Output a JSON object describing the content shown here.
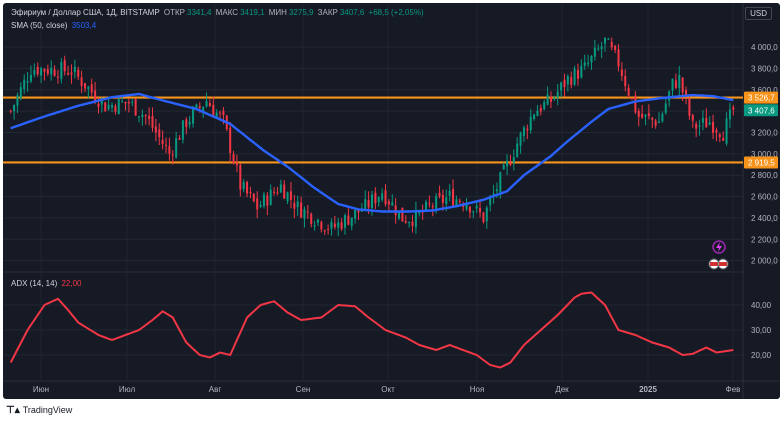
{
  "header": {
    "symbol": "Эфириум / Доллар США, 1Д, BITSTAMP",
    "open_label": "ОТКР",
    "open": "3341,4",
    "high_label": "МАКС",
    "high": "3419,1",
    "low_label": "МИН",
    "low": "3275,9",
    "close_label": "ЗАКР",
    "close": "3407,6",
    "change": "+68,5 (+2,05%)",
    "sma_label": "SMA (50, close)",
    "sma_value": "3503,4",
    "adx_label": "ADX (14, 14)",
    "adx_value": "22,00",
    "currency": "USD"
  },
  "footer": {
    "brand": "TradingView"
  },
  "colors": {
    "background": "#161a25",
    "up": "#089981",
    "down": "#f23645",
    "sma": "#2962ff",
    "adx": "#f23645",
    "level": "#f7931a"
  },
  "chart_data": [
    {
      "type": "candlestick",
      "title": "Эфириум / Доллар США, 1Д, BITSTAMP",
      "ylim": [
        1950,
        4150
      ],
      "y_ticks": [
        2000,
        2200,
        2400,
        2600,
        2800,
        3000,
        3200,
        3400,
        3600,
        3800,
        4000
      ],
      "y_tick_labels": [
        "2 000,0",
        "2 200,0",
        "2 400,0",
        "2 600,0",
        "2 800,0",
        "3 000,0",
        "3 200,0",
        "3 400,0",
        "3 600,0",
        "3 800,0",
        "4 000,0"
      ],
      "x_labels": [
        "Июн",
        "Июл",
        "Авг",
        "Сен",
        "Окт",
        "Ноя",
        "Дек",
        "2025",
        "Фев"
      ],
      "horizontal_levels": [
        {
          "value": 3526.7,
          "label": "3 526,7"
        },
        {
          "value": 2919.5,
          "label": "2 919,5"
        }
      ],
      "last_price_label": "3 407,6",
      "close_path": [
        [
          0,
          3400
        ],
        [
          6,
          3800
        ],
        [
          18,
          3780
        ],
        [
          28,
          3450
        ],
        [
          35,
          3480
        ],
        [
          40,
          3350
        ],
        [
          45,
          3100
        ],
        [
          47,
          3000
        ],
        [
          52,
          3300
        ],
        [
          58,
          3500
        ],
        [
          63,
          3300
        ],
        [
          66,
          2950
        ],
        [
          68,
          2700
        ],
        [
          73,
          2500
        ],
        [
          80,
          2700
        ],
        [
          85,
          2500
        ],
        [
          95,
          2300
        ],
        [
          105,
          2500
        ],
        [
          110,
          2650
        ],
        [
          116,
          2400
        ],
        [
          120,
          2400
        ],
        [
          124,
          2500
        ],
        [
          130,
          2600
        ],
        [
          135,
          2550
        ],
        [
          140,
          2400
        ],
        [
          142,
          2550
        ],
        [
          145,
          2750
        ],
        [
          150,
          3100
        ],
        [
          155,
          3400
        ],
        [
          160,
          3500
        ],
        [
          165,
          3700
        ],
        [
          170,
          3800
        ],
        [
          176,
          4050
        ],
        [
          180,
          3850
        ],
        [
          184,
          3500
        ],
        [
          186,
          3350
        ],
        [
          192,
          3300
        ],
        [
          196,
          3650
        ],
        [
          198,
          3700
        ],
        [
          202,
          3250
        ],
        [
          207,
          3300
        ],
        [
          211,
          3200
        ],
        [
          214,
          3407.6
        ]
      ],
      "sma_path": [
        [
          0,
          3240
        ],
        [
          10,
          3350
        ],
        [
          20,
          3450
        ],
        [
          30,
          3530
        ],
        [
          38,
          3560
        ],
        [
          45,
          3500
        ],
        [
          55,
          3420
        ],
        [
          65,
          3280
        ],
        [
          75,
          3030
        ],
        [
          82,
          2880
        ],
        [
          90,
          2680
        ],
        [
          97,
          2530
        ],
        [
          103,
          2480
        ],
        [
          110,
          2460
        ],
        [
          118,
          2460
        ],
        [
          125,
          2470
        ],
        [
          132,
          2510
        ],
        [
          140,
          2570
        ],
        [
          147,
          2650
        ],
        [
          152,
          2800
        ],
        [
          160,
          2980
        ],
        [
          165,
          3120
        ],
        [
          172,
          3300
        ],
        [
          177,
          3420
        ],
        [
          185,
          3490
        ],
        [
          192,
          3520
        ],
        [
          202,
          3550
        ],
        [
          208,
          3540
        ],
        [
          214,
          3503.4
        ]
      ]
    },
    {
      "type": "line",
      "title": "ADX (14, 14)",
      "ylim": [
        12,
        48
      ],
      "y_ticks": [
        20,
        30,
        40
      ],
      "y_tick_labels": [
        "20,00",
        "30,00",
        "40,00"
      ],
      "adx_path": [
        [
          0,
          17
        ],
        [
          5,
          30
        ],
        [
          10,
          40
        ],
        [
          14,
          42.5
        ],
        [
          17,
          38
        ],
        [
          20,
          33
        ],
        [
          26,
          28
        ],
        [
          30,
          26
        ],
        [
          34,
          28
        ],
        [
          38,
          30
        ],
        [
          42,
          34
        ],
        [
          45,
          37.5
        ],
        [
          48,
          35
        ],
        [
          52,
          25
        ],
        [
          56,
          20
        ],
        [
          59,
          19
        ],
        [
          62,
          21
        ],
        [
          65,
          20
        ],
        [
          70,
          35
        ],
        [
          74,
          40
        ],
        [
          78,
          41.5
        ],
        [
          82,
          37
        ],
        [
          86,
          34
        ],
        [
          92,
          35
        ],
        [
          97,
          40
        ],
        [
          102,
          39.5
        ],
        [
          106,
          35
        ],
        [
          111,
          30
        ],
        [
          117,
          27
        ],
        [
          121,
          24
        ],
        [
          126,
          22
        ],
        [
          130,
          24
        ],
        [
          134,
          22
        ],
        [
          138,
          20
        ],
        [
          142,
          16
        ],
        [
          145,
          15
        ],
        [
          148,
          17
        ],
        [
          152,
          24
        ],
        [
          157,
          30
        ],
        [
          162,
          36
        ],
        [
          167,
          43
        ],
        [
          169,
          44.5
        ],
        [
          172,
          45
        ],
        [
          176,
          40
        ],
        [
          180,
          30
        ],
        [
          185,
          28
        ],
        [
          190,
          25
        ],
        [
          195,
          23
        ],
        [
          199,
          20
        ],
        [
          202,
          20.5
        ],
        [
          206,
          23
        ],
        [
          209,
          21
        ],
        [
          214,
          22
        ]
      ]
    }
  ]
}
